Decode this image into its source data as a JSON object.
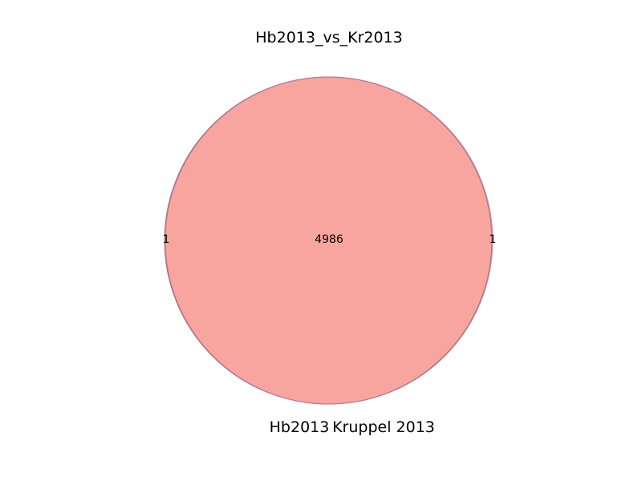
{
  "chart_data": {
    "type": "venn",
    "title": "Hb2013_vs_Kr2013",
    "sets": [
      {
        "name": "Hb2013",
        "only_count": "1",
        "color": "#f08080"
      },
      {
        "name": "Kruppel 2013",
        "only_count": "1",
        "color": "#f08080"
      }
    ],
    "intersection_count": "4986",
    "colors": {
      "fill": "#f9a59f",
      "outline_left": "#8a7a7a",
      "outline_right": "#c060a0"
    }
  }
}
